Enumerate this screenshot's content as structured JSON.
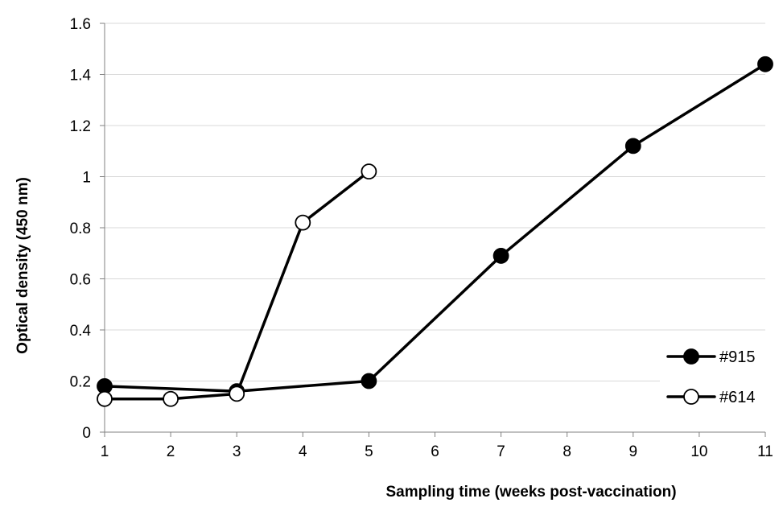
{
  "chart_data": {
    "type": "line",
    "xlabel": "Sampling time (weeks post-vaccination)",
    "ylabel": "Optical density  (450 nm)",
    "categories": [
      "1",
      "2",
      "3",
      "4",
      "5",
      "6",
      "7",
      "8",
      "9",
      "10",
      "11"
    ],
    "y_ticks": [
      "0",
      "0.2",
      "0.4",
      "0.6",
      "0.8",
      "1",
      "1.2",
      "1.4",
      "1.6"
    ],
    "ylim": [
      0,
      1.6
    ],
    "grid": "horizontal",
    "legend_position": "right",
    "series": [
      {
        "name": "#915",
        "marker": "filled-circle",
        "color": "#000000",
        "points": [
          {
            "x": "1",
            "y": 0.18
          },
          {
            "x": "3",
            "y": 0.16
          },
          {
            "x": "5",
            "y": 0.2
          },
          {
            "x": "7",
            "y": 0.69
          },
          {
            "x": "9",
            "y": 1.12
          },
          {
            "x": "11",
            "y": 1.44
          }
        ]
      },
      {
        "name": "#614",
        "marker": "open-circle",
        "color": "#000000",
        "points": [
          {
            "x": "1",
            "y": 0.13
          },
          {
            "x": "2",
            "y": 0.13
          },
          {
            "x": "3",
            "y": 0.15
          },
          {
            "x": "4",
            "y": 0.82
          },
          {
            "x": "5",
            "y": 1.02
          }
        ]
      }
    ]
  }
}
